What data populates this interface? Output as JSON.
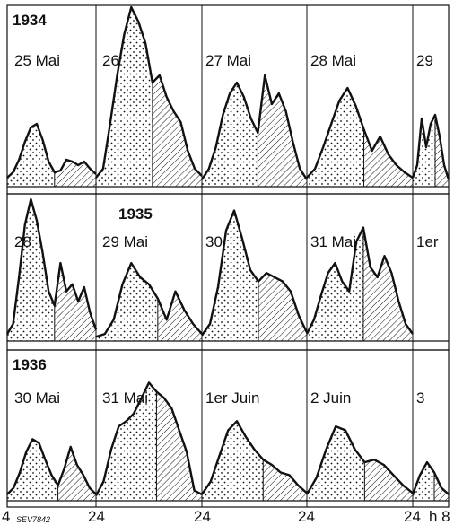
{
  "chart_data": {
    "type": "area",
    "grid": true,
    "x_unit": "h",
    "x_ticks": [
      "4",
      "24",
      "24",
      "24",
      "24",
      "h 8"
    ],
    "figure_code": "SEV7842",
    "panels": [
      {
        "year": "1934",
        "day_labels": [
          "25 Mai",
          "26",
          "27 Mai",
          "28 Mai",
          "29"
        ],
        "series": [
          {
            "day": 0,
            "y": [
              0.05,
              0.08,
              0.15,
              0.25,
              0.33,
              0.35,
              0.26,
              0.14,
              0.08,
              0.09,
              0.15,
              0.14,
              0.12,
              0.14,
              0.1,
              0.07
            ]
          },
          {
            "day": 1,
            "y": [
              0.05,
              0.1,
              0.35,
              0.62,
              0.85,
              1.0,
              0.92,
              0.8,
              0.58,
              0.62,
              0.5,
              0.42,
              0.36,
              0.2,
              0.1,
              0.06
            ]
          },
          {
            "day": 2,
            "y": [
              0.04,
              0.1,
              0.22,
              0.4,
              0.52,
              0.58,
              0.5,
              0.38,
              0.3,
              0.62,
              0.46,
              0.52,
              0.42,
              0.25,
              0.1,
              0.04
            ]
          },
          {
            "day": 3,
            "y": [
              0.05,
              0.1,
              0.22,
              0.35,
              0.48,
              0.55,
              0.45,
              0.32,
              0.2,
              0.28,
              0.18,
              0.12,
              0.08,
              0.05
            ]
          },
          {
            "day": 4,
            "y": [
              0.05,
              0.12,
              0.38,
              0.22,
              0.35,
              0.4,
              0.28,
              0.12,
              0.04
            ]
          }
        ]
      },
      {
        "year": "1935",
        "day_labels": [
          "28",
          "29 Mai",
          "30",
          "31 Mai",
          "1er"
        ],
        "series": [
          {
            "day": 0,
            "y": [
              0.05,
              0.12,
              0.45,
              0.82,
              1.0,
              0.85,
              0.62,
              0.35,
              0.25,
              0.55,
              0.35,
              0.4,
              0.28,
              0.38,
              0.2,
              0.08
            ]
          },
          {
            "day": 1,
            "y": [
              0.03,
              0.05,
              0.15,
              0.4,
              0.55,
              0.45,
              0.4,
              0.3,
              0.15,
              0.35,
              0.22,
              0.12,
              0.05
            ]
          },
          {
            "day": 2,
            "y": [
              0.04,
              0.12,
              0.38,
              0.78,
              0.92,
              0.72,
              0.5,
              0.42,
              0.48,
              0.45,
              0.42,
              0.35,
              0.18,
              0.06
            ]
          },
          {
            "day": 3,
            "y": [
              0.05,
              0.15,
              0.32,
              0.48,
              0.55,
              0.42,
              0.35,
              0.7,
              0.8,
              0.52,
              0.45,
              0.6,
              0.48,
              0.28,
              0.12,
              0.05
            ]
          }
        ]
      },
      {
        "year": "1936",
        "day_labels": [
          "30 Mai",
          "31 Mai",
          "1er Juin",
          "2 Juin",
          "3"
        ],
        "series": [
          {
            "day": 0,
            "y": [
              0.05,
              0.1,
              0.22,
              0.38,
              0.48,
              0.45,
              0.32,
              0.2,
              0.12,
              0.25,
              0.42,
              0.28,
              0.2,
              0.1,
              0.05
            ]
          },
          {
            "day": 1,
            "y": [
              0.04,
              0.15,
              0.4,
              0.58,
              0.62,
              0.68,
              0.8,
              0.92,
              0.85,
              0.8,
              0.72,
              0.55,
              0.38,
              0.08,
              0.05
            ]
          },
          {
            "day": 2,
            "y": [
              0.05,
              0.15,
              0.35,
              0.55,
              0.62,
              0.5,
              0.4,
              0.32,
              0.28,
              0.22,
              0.2,
              0.12,
              0.06
            ]
          },
          {
            "day": 3,
            "y": [
              0.05,
              0.18,
              0.4,
              0.58,
              0.55,
              0.4,
              0.3,
              0.32,
              0.28,
              0.2,
              0.12,
              0.06
            ]
          },
          {
            "day": 4,
            "y": [
              0.05,
              0.2,
              0.3,
              0.22,
              0.1,
              0.05
            ]
          }
        ]
      }
    ]
  }
}
